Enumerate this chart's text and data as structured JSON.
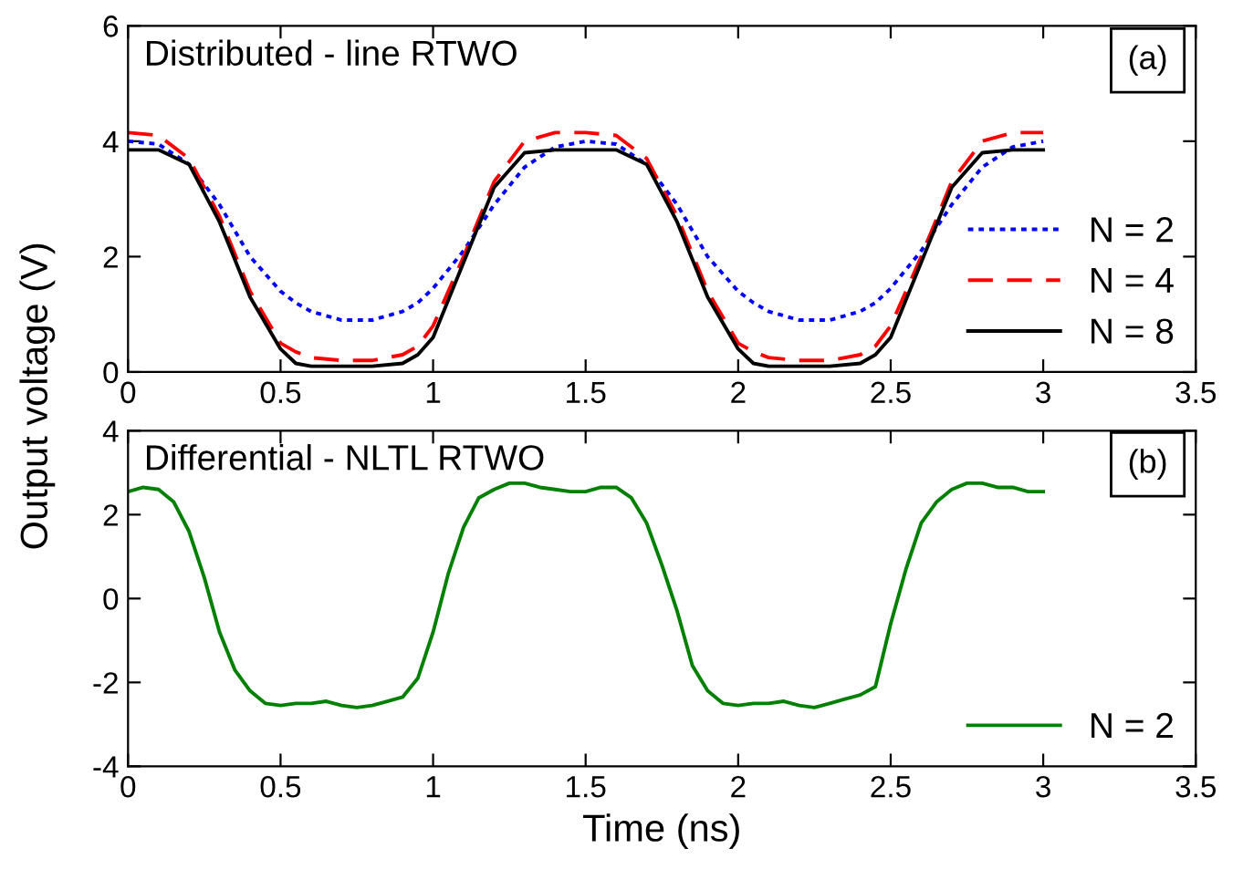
{
  "chart_data": [
    {
      "type": "line",
      "title": "Distributed - line RTWO",
      "ylabel": "Output voltage (V)",
      "annotations": [
        "(a)"
      ],
      "x": [
        0,
        0.1,
        0.2,
        0.3,
        0.4,
        0.5,
        0.55,
        0.6,
        0.7,
        0.8,
        0.9,
        0.95,
        1.0,
        1.1,
        1.2,
        1.3,
        1.4,
        1.5,
        1.6,
        1.7,
        1.8,
        1.9,
        2.0,
        2.05,
        2.1,
        2.2,
        2.3,
        2.4,
        2.45,
        2.5,
        2.6,
        2.7,
        2.8,
        2.9,
        3.0
      ],
      "series": [
        {
          "name": "N = 2",
          "color": "#0000ff",
          "line_style": "dotted",
          "values": [
            4.0,
            3.95,
            3.6,
            2.9,
            2.0,
            1.4,
            1.2,
            1.05,
            0.9,
            0.9,
            1.05,
            1.2,
            1.45,
            2.1,
            2.9,
            3.55,
            3.9,
            4.0,
            3.95,
            3.6,
            2.9,
            2.0,
            1.4,
            1.2,
            1.05,
            0.9,
            0.9,
            1.05,
            1.2,
            1.45,
            2.1,
            2.9,
            3.55,
            3.9,
            4.0
          ]
        },
        {
          "name": "N = 4",
          "color": "#ff0000",
          "line_style": "dashed",
          "values": [
            4.15,
            4.1,
            3.7,
            2.7,
            1.4,
            0.5,
            0.35,
            0.25,
            0.2,
            0.2,
            0.3,
            0.45,
            0.8,
            2.0,
            3.3,
            4.0,
            4.15,
            4.15,
            4.1,
            3.7,
            2.7,
            1.4,
            0.5,
            0.35,
            0.25,
            0.2,
            0.2,
            0.3,
            0.45,
            0.8,
            2.0,
            3.3,
            4.0,
            4.15,
            4.15
          ]
        },
        {
          "name": "N = 8",
          "color": "#000000",
          "line_style": "solid",
          "values": [
            3.85,
            3.85,
            3.6,
            2.6,
            1.3,
            0.4,
            0.15,
            0.1,
            0.1,
            0.1,
            0.15,
            0.3,
            0.6,
            1.9,
            3.2,
            3.8,
            3.85,
            3.85,
            3.85,
            3.6,
            2.6,
            1.3,
            0.4,
            0.15,
            0.1,
            0.1,
            0.1,
            0.15,
            0.3,
            0.6,
            1.9,
            3.2,
            3.8,
            3.85,
            3.85
          ]
        }
      ],
      "xlim": [
        0,
        3.5
      ],
      "xticks": [
        0,
        0.5,
        1,
        1.5,
        2,
        2.5,
        3,
        3.5
      ],
      "ylim": [
        0,
        6
      ],
      "yticks": [
        0,
        2,
        4,
        6
      ],
      "legend": "bottom right",
      "grid": false
    },
    {
      "type": "line",
      "title": "Differential - NLTL RTWO",
      "xlabel": "Time (ns)",
      "annotations": [
        "(b)"
      ],
      "x": [
        0,
        0.05,
        0.1,
        0.15,
        0.2,
        0.25,
        0.3,
        0.35,
        0.4,
        0.45,
        0.5,
        0.55,
        0.6,
        0.65,
        0.7,
        0.75,
        0.8,
        0.85,
        0.9,
        0.95,
        1.0,
        1.05,
        1.1,
        1.15,
        1.2,
        1.25,
        1.3,
        1.35,
        1.4,
        1.45,
        1.5,
        1.55,
        1.6,
        1.65,
        1.7,
        1.75,
        1.8,
        1.85,
        1.9,
        1.95,
        2.0,
        2.05,
        2.1,
        2.15,
        2.2,
        2.25,
        2.3,
        2.35,
        2.4,
        2.45,
        2.5,
        2.55,
        2.6,
        2.65,
        2.7,
        2.75,
        2.8,
        2.85,
        2.9,
        2.95,
        3.0
      ],
      "series": [
        {
          "name": "N = 2",
          "color": "#008000",
          "line_style": "solid",
          "values": [
            2.55,
            2.65,
            2.6,
            2.3,
            1.6,
            0.5,
            -0.8,
            -1.7,
            -2.2,
            -2.5,
            -2.55,
            -2.5,
            -2.5,
            -2.45,
            -2.55,
            -2.6,
            -2.55,
            -2.45,
            -2.35,
            -1.9,
            -0.8,
            0.6,
            1.7,
            2.4,
            2.6,
            2.75,
            2.75,
            2.65,
            2.6,
            2.55,
            2.55,
            2.65,
            2.65,
            2.4,
            1.8,
            0.8,
            -0.3,
            -1.6,
            -2.2,
            -2.5,
            -2.55,
            -2.5,
            -2.5,
            -2.45,
            -2.55,
            -2.6,
            -2.5,
            -2.4,
            -2.3,
            -2.1,
            -0.6,
            0.7,
            1.8,
            2.3,
            2.6,
            2.75,
            2.75,
            2.65,
            2.65,
            2.55,
            2.55
          ]
        }
      ],
      "xlim": [
        0,
        3.5
      ],
      "xticks": [
        0,
        0.5,
        1,
        1.5,
        2,
        2.5,
        3,
        3.5
      ],
      "ylim": [
        -4,
        4
      ],
      "yticks": [
        -4,
        -2,
        0,
        2,
        4
      ],
      "legend": "bottom right",
      "grid": false
    }
  ]
}
